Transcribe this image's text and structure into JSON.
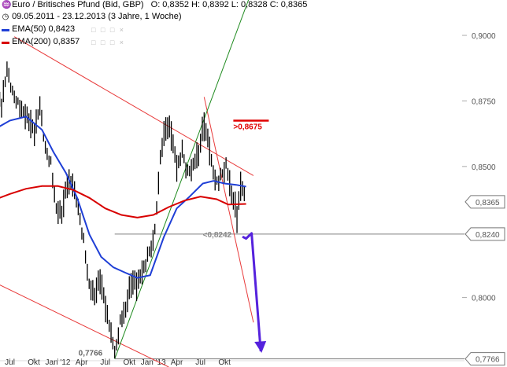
{
  "header": {
    "title": "Euro / Britisches Pfund (Bid, GBP)",
    "ohlc": "O: 0,8352  H: 0,8392  L: 0,8328  C: 0,8365",
    "period": "09.05.2011 - 23.12.2013 (3 Jahre, 1 Woche)",
    "ema50_label": "EMA(50)",
    "ema50_value": "0,8423",
    "ema200_label": "EMA(200)",
    "ema200_value": "0,8357",
    "window_buttons": "□ □ □ ×"
  },
  "chart_data": {
    "type": "line",
    "title": "Euro / Britisches Pfund (Bid, GBP)",
    "subtitle": "09.05.2011 - 23.12.2013 (3 Jahre, 1 Woche)",
    "x_range": [
      "2011-05-09",
      "2013-12-23"
    ],
    "x_tick_labels": [
      "Jul",
      "Okt",
      "Jan '12",
      "Apr",
      "Jul",
      "Okt",
      "Jan '13",
      "Apr",
      "Jul",
      "Okt"
    ],
    "x_tick_dates": [
      "2011-07-01",
      "2011-10-01",
      "2012-01-01",
      "2012-04-01",
      "2012-07-01",
      "2012-10-01",
      "2013-01-01",
      "2013-04-01",
      "2013-07-01",
      "2013-10-01"
    ],
    "y_tick_labels": [
      "0,9000",
      "0,8750",
      "0,8500",
      "0,8000"
    ],
    "y_tick_values": [
      0.9,
      0.875,
      0.85,
      0.8
    ],
    "ylim": [
      0.7735,
      0.9135
    ],
    "grid": false,
    "price": {
      "name": "Euro / Britisches Pfund",
      "color": "#000000",
      "points": [
        [
          "2011-05-09",
          0.878
        ],
        [
          "2011-05-30",
          0.872
        ],
        [
          "2011-06-20",
          0.886
        ],
        [
          "2011-07-11",
          0.878
        ],
        [
          "2011-08-01",
          0.875
        ],
        [
          "2011-08-22",
          0.872
        ],
        [
          "2011-09-12",
          0.868
        ],
        [
          "2011-10-03",
          0.862
        ],
        [
          "2011-10-24",
          0.872
        ],
        [
          "2011-11-14",
          0.856
        ],
        [
          "2011-12-05",
          0.852
        ],
        [
          "2011-12-26",
          0.835
        ],
        [
          "2012-01-16",
          0.833
        ],
        [
          "2012-02-06",
          0.843
        ],
        [
          "2012-02-27",
          0.842
        ],
        [
          "2012-03-19",
          0.833
        ],
        [
          "2012-04-09",
          0.822
        ],
        [
          "2012-04-30",
          0.806
        ],
        [
          "2012-05-21",
          0.802
        ],
        [
          "2012-06-11",
          0.807
        ],
        [
          "2012-07-02",
          0.795
        ],
        [
          "2012-07-23",
          0.785
        ],
        [
          "2012-08-06",
          0.778
        ],
        [
          "2012-08-27",
          0.792
        ],
        [
          "2012-09-17",
          0.797
        ],
        [
          "2012-10-08",
          0.806
        ],
        [
          "2012-10-29",
          0.804
        ],
        [
          "2012-11-19",
          0.808
        ],
        [
          "2012-12-10",
          0.815
        ],
        [
          "2013-01-07",
          0.826
        ],
        [
          "2013-01-28",
          0.855
        ],
        [
          "2013-02-18",
          0.866
        ],
        [
          "2013-03-11",
          0.862
        ],
        [
          "2013-04-01",
          0.848
        ],
        [
          "2013-04-22",
          0.855
        ],
        [
          "2013-05-13",
          0.848
        ],
        [
          "2013-06-03",
          0.852
        ],
        [
          "2013-06-24",
          0.856
        ],
        [
          "2013-07-15",
          0.866
        ],
        [
          "2013-08-05",
          0.855
        ],
        [
          "2013-08-26",
          0.843
        ],
        [
          "2013-09-16",
          0.846
        ],
        [
          "2013-10-07",
          0.852
        ],
        [
          "2013-10-28",
          0.841
        ],
        [
          "2013-11-18",
          0.831
        ],
        [
          "2013-12-02",
          0.842
        ],
        [
          "2013-12-23",
          0.8365
        ]
      ]
    },
    "series": [
      {
        "name": "EMA(50)",
        "color": "#1f3fd6",
        "points": [
          [
            "2011-05-09",
            0.8645
          ],
          [
            "2011-07-01",
            0.8675
          ],
          [
            "2011-09-01",
            0.869
          ],
          [
            "2011-11-01",
            0.864
          ],
          [
            "2011-12-15",
            0.8555
          ],
          [
            "2012-02-01",
            0.8475
          ],
          [
            "2012-03-15",
            0.838
          ],
          [
            "2012-05-01",
            0.824
          ],
          [
            "2012-06-15",
            0.8155
          ],
          [
            "2012-08-01",
            0.8115
          ],
          [
            "2012-09-15",
            0.8095
          ],
          [
            "2012-11-01",
            0.8075
          ],
          [
            "2012-12-20",
            0.8085
          ],
          [
            "2013-02-10",
            0.823
          ],
          [
            "2013-04-01",
            0.834
          ],
          [
            "2013-05-20",
            0.8385
          ],
          [
            "2013-07-10",
            0.8435
          ],
          [
            "2013-08-20",
            0.8445
          ],
          [
            "2013-10-01",
            0.8435
          ],
          [
            "2013-11-15",
            0.843
          ],
          [
            "2013-12-23",
            0.8423
          ]
        ]
      },
      {
        "name": "EMA(200)",
        "color": "#d80000",
        "points": [
          [
            "2011-05-09",
            0.8375
          ],
          [
            "2011-07-01",
            0.8395
          ],
          [
            "2011-09-01",
            0.8415
          ],
          [
            "2011-11-01",
            0.8425
          ],
          [
            "2012-01-01",
            0.8425
          ],
          [
            "2012-03-01",
            0.841
          ],
          [
            "2012-05-01",
            0.838
          ],
          [
            "2012-07-01",
            0.834
          ],
          [
            "2012-09-01",
            0.8315
          ],
          [
            "2012-11-01",
            0.8305
          ],
          [
            "2013-01-01",
            0.8315
          ],
          [
            "2013-03-01",
            0.8345
          ],
          [
            "2013-05-01",
            0.837
          ],
          [
            "2013-07-01",
            0.8385
          ],
          [
            "2013-09-01",
            0.8375
          ],
          [
            "2013-10-15",
            0.8355
          ],
          [
            "2013-12-23",
            0.8357
          ]
        ]
      }
    ],
    "trendlines": [
      {
        "name": "upper-channel-line",
        "color": "#e83a3a",
        "from": [
          "2011-07-18",
          0.8995
        ],
        "to": [
          "2014-01-20",
          0.8465
        ]
      },
      {
        "name": "lower-channel-line",
        "color": "#e83a3a",
        "from": [
          "2011-05-09",
          0.8055
        ],
        "to": [
          "2013-03-01",
          0.7735
        ]
      },
      {
        "name": "resistance-line",
        "color": "#e83a3a",
        "from": [
          "2013-07-15",
          0.8765
        ],
        "to": [
          "2014-01-20",
          0.7905
        ]
      },
      {
        "name": "support-trend-line",
        "color": "#1e8a1e",
        "from": [
          "2012-08-06",
          0.7766
        ],
        "to": [
          "2014-01-01",
          0.9135
        ]
      }
    ],
    "levels": [
      {
        "name": "level-0-8242",
        "value": 0.8242,
        "color": "#7f7f7f",
        "label": "<0,8242",
        "box_label": "0,8240"
      },
      {
        "name": "level-0-7766",
        "value": 0.7766,
        "color": "#7f7f7f",
        "label": "0,7766",
        "box_label": "0,7766"
      },
      {
        "name": "level-0-8675",
        "value": 0.8675,
        "color": "#e00000",
        "label": ">0,8675"
      }
    ],
    "last_value_label": "0,8365",
    "forecast_arrow": {
      "color": "#5522dd",
      "points": [
        [
          "2013-12-09",
          0.8232
        ],
        [
          "2013-12-23",
          0.8225
        ],
        [
          "2014-01-13",
          0.8245
        ],
        [
          "2014-02-17",
          0.7795
        ]
      ]
    }
  }
}
